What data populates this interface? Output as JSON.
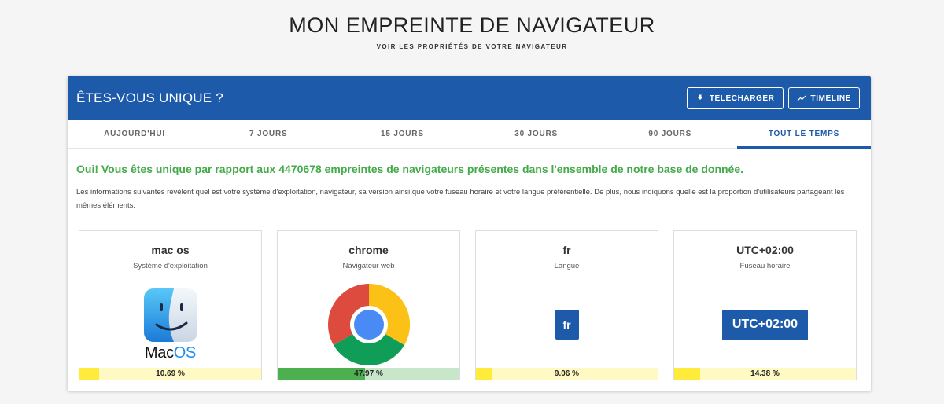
{
  "page": {
    "title": "MON EMPREINTE DE NAVIGATEUR",
    "subtitle": "VOIR LES PROPRIÉTÉS DE VOTRE NAVIGATEUR"
  },
  "card": {
    "title": "ÊTES-VOUS UNIQUE ?",
    "download_label": "TÉLÉCHARGER",
    "timeline_label": "TIMELINE"
  },
  "tabs": [
    {
      "label": "AUJOURD'HUI"
    },
    {
      "label": "7 JOURS"
    },
    {
      "label": "15 JOURS"
    },
    {
      "label": "30 JOURS"
    },
    {
      "label": "90 JOURS"
    },
    {
      "label": "TOUT LE TEMPS",
      "active": true
    }
  ],
  "result": {
    "message": "Oui! Vous êtes unique par rapport aux 4470678 empreintes de navigateurs présentes dans l'ensemble de notre base de donnée.",
    "description": "Les informations suivantes révèlent quel est votre système d'exploitation, navigateur, sa version ainsi que votre fuseau horaire et votre langue préférentielle. De plus, nous indiquons quelle est la proportion d'utilisateurs partageant les mêmes éléments."
  },
  "stats": [
    {
      "value": "mac os",
      "label": "Système d'exploitation",
      "percent_text": "10.69 %",
      "percent": 10.69,
      "icon": "macos-finder-icon",
      "logo_text_a": "Mac",
      "logo_text_b": "OS"
    },
    {
      "value": "chrome",
      "label": "Navigateur web",
      "percent_text": "47.97 %",
      "percent": 47.97,
      "icon": "chrome-icon"
    },
    {
      "value": "fr",
      "label": "Langue",
      "percent_text": "9.06 %",
      "percent": 9.06,
      "badge": "fr"
    },
    {
      "value": "UTC+02:00",
      "label": "Fuseau horaire",
      "percent_text": "14.38 %",
      "percent": 14.38,
      "badge": "UTC+02:00"
    }
  ],
  "colors": {
    "primary": "#1e5aaa",
    "success": "#43ab49",
    "bar_yellow": "#ffeb3b",
    "bar_green": "#4caf50"
  }
}
